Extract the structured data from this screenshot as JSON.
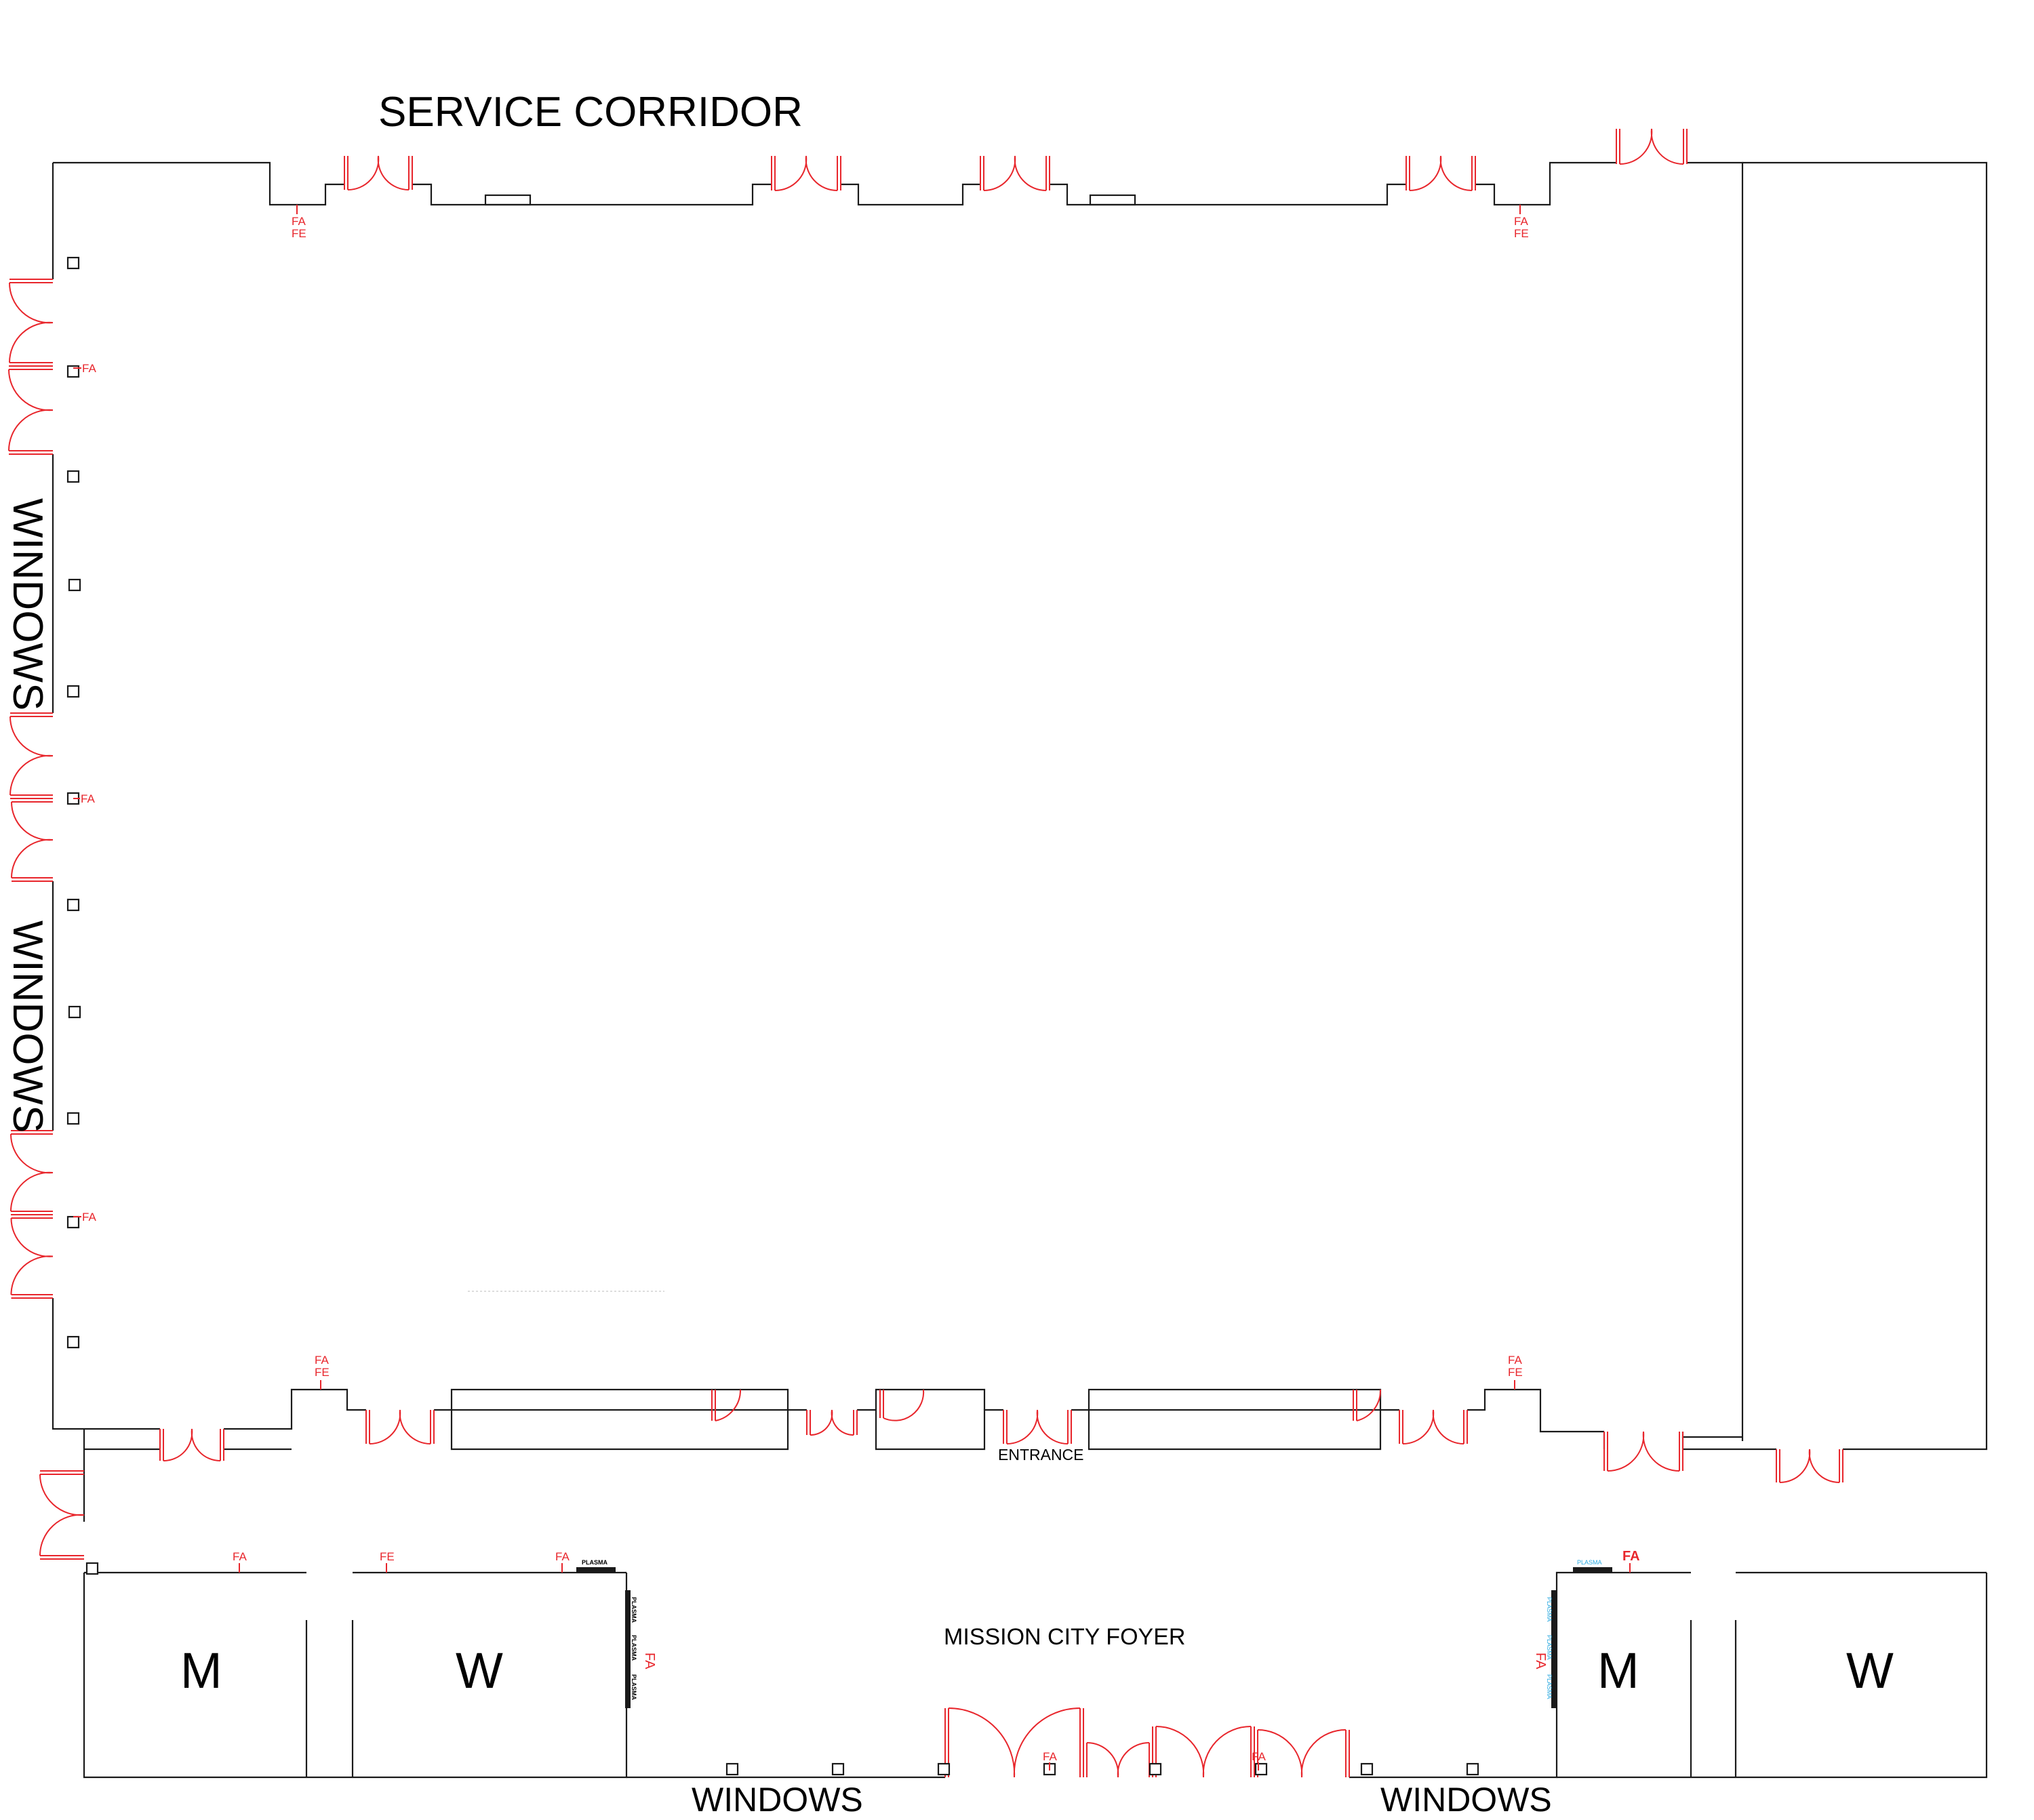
{
  "labels": {
    "service_corridor": "SERVICE CORRIDOR",
    "windows_left_upper": "WINDOWS",
    "windows_left_lower": "WINDOWS",
    "windows_bottom_left": "WINDOWS",
    "windows_bottom_right": "WINDOWS",
    "entrance": "ENTRANCE",
    "foyer": "MISSION CITY FOYER",
    "restroom_m_left": "M",
    "restroom_w_left": "W",
    "restroom_m_right": "M",
    "restroom_w_right": "W"
  },
  "markers": {
    "fa": "FA",
    "fe": "FE",
    "plasma": "PLASMA"
  },
  "colors": {
    "walls": "#1a1a1a",
    "doors": "#e8262c",
    "fire_markers": "#e8262c",
    "plasma_right": "#27a9e1"
  }
}
